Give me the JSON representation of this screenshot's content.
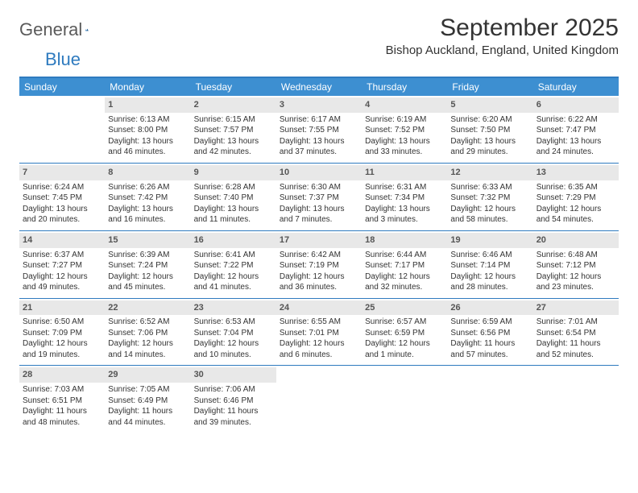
{
  "logo": {
    "word1": "General",
    "word2": "Blue"
  },
  "title": "September 2025",
  "location": "Bishop Auckland, England, United Kingdom",
  "colors": {
    "header_bg": "#3d8fd1",
    "rule": "#2f7bbf",
    "daynum_bg": "#e8e8e8",
    "text": "#333333",
    "logo_gray": "#5a5a5a",
    "logo_blue": "#2f7bbf"
  },
  "day_headers": [
    "Sunday",
    "Monday",
    "Tuesday",
    "Wednesday",
    "Thursday",
    "Friday",
    "Saturday"
  ],
  "weeks": [
    [
      {
        "empty": true
      },
      {
        "n": "1",
        "sunrise": "Sunrise: 6:13 AM",
        "sunset": "Sunset: 8:00 PM",
        "daylight": "Daylight: 13 hours and 46 minutes."
      },
      {
        "n": "2",
        "sunrise": "Sunrise: 6:15 AM",
        "sunset": "Sunset: 7:57 PM",
        "daylight": "Daylight: 13 hours and 42 minutes."
      },
      {
        "n": "3",
        "sunrise": "Sunrise: 6:17 AM",
        "sunset": "Sunset: 7:55 PM",
        "daylight": "Daylight: 13 hours and 37 minutes."
      },
      {
        "n": "4",
        "sunrise": "Sunrise: 6:19 AM",
        "sunset": "Sunset: 7:52 PM",
        "daylight": "Daylight: 13 hours and 33 minutes."
      },
      {
        "n": "5",
        "sunrise": "Sunrise: 6:20 AM",
        "sunset": "Sunset: 7:50 PM",
        "daylight": "Daylight: 13 hours and 29 minutes."
      },
      {
        "n": "6",
        "sunrise": "Sunrise: 6:22 AM",
        "sunset": "Sunset: 7:47 PM",
        "daylight": "Daylight: 13 hours and 24 minutes."
      }
    ],
    [
      {
        "n": "7",
        "sunrise": "Sunrise: 6:24 AM",
        "sunset": "Sunset: 7:45 PM",
        "daylight": "Daylight: 13 hours and 20 minutes."
      },
      {
        "n": "8",
        "sunrise": "Sunrise: 6:26 AM",
        "sunset": "Sunset: 7:42 PM",
        "daylight": "Daylight: 13 hours and 16 minutes."
      },
      {
        "n": "9",
        "sunrise": "Sunrise: 6:28 AM",
        "sunset": "Sunset: 7:40 PM",
        "daylight": "Daylight: 13 hours and 11 minutes."
      },
      {
        "n": "10",
        "sunrise": "Sunrise: 6:30 AM",
        "sunset": "Sunset: 7:37 PM",
        "daylight": "Daylight: 13 hours and 7 minutes."
      },
      {
        "n": "11",
        "sunrise": "Sunrise: 6:31 AM",
        "sunset": "Sunset: 7:34 PM",
        "daylight": "Daylight: 13 hours and 3 minutes."
      },
      {
        "n": "12",
        "sunrise": "Sunrise: 6:33 AM",
        "sunset": "Sunset: 7:32 PM",
        "daylight": "Daylight: 12 hours and 58 minutes."
      },
      {
        "n": "13",
        "sunrise": "Sunrise: 6:35 AM",
        "sunset": "Sunset: 7:29 PM",
        "daylight": "Daylight: 12 hours and 54 minutes."
      }
    ],
    [
      {
        "n": "14",
        "sunrise": "Sunrise: 6:37 AM",
        "sunset": "Sunset: 7:27 PM",
        "daylight": "Daylight: 12 hours and 49 minutes."
      },
      {
        "n": "15",
        "sunrise": "Sunrise: 6:39 AM",
        "sunset": "Sunset: 7:24 PM",
        "daylight": "Daylight: 12 hours and 45 minutes."
      },
      {
        "n": "16",
        "sunrise": "Sunrise: 6:41 AM",
        "sunset": "Sunset: 7:22 PM",
        "daylight": "Daylight: 12 hours and 41 minutes."
      },
      {
        "n": "17",
        "sunrise": "Sunrise: 6:42 AM",
        "sunset": "Sunset: 7:19 PM",
        "daylight": "Daylight: 12 hours and 36 minutes."
      },
      {
        "n": "18",
        "sunrise": "Sunrise: 6:44 AM",
        "sunset": "Sunset: 7:17 PM",
        "daylight": "Daylight: 12 hours and 32 minutes."
      },
      {
        "n": "19",
        "sunrise": "Sunrise: 6:46 AM",
        "sunset": "Sunset: 7:14 PM",
        "daylight": "Daylight: 12 hours and 28 minutes."
      },
      {
        "n": "20",
        "sunrise": "Sunrise: 6:48 AM",
        "sunset": "Sunset: 7:12 PM",
        "daylight": "Daylight: 12 hours and 23 minutes."
      }
    ],
    [
      {
        "n": "21",
        "sunrise": "Sunrise: 6:50 AM",
        "sunset": "Sunset: 7:09 PM",
        "daylight": "Daylight: 12 hours and 19 minutes."
      },
      {
        "n": "22",
        "sunrise": "Sunrise: 6:52 AM",
        "sunset": "Sunset: 7:06 PM",
        "daylight": "Daylight: 12 hours and 14 minutes."
      },
      {
        "n": "23",
        "sunrise": "Sunrise: 6:53 AM",
        "sunset": "Sunset: 7:04 PM",
        "daylight": "Daylight: 12 hours and 10 minutes."
      },
      {
        "n": "24",
        "sunrise": "Sunrise: 6:55 AM",
        "sunset": "Sunset: 7:01 PM",
        "daylight": "Daylight: 12 hours and 6 minutes."
      },
      {
        "n": "25",
        "sunrise": "Sunrise: 6:57 AM",
        "sunset": "Sunset: 6:59 PM",
        "daylight": "Daylight: 12 hours and 1 minute."
      },
      {
        "n": "26",
        "sunrise": "Sunrise: 6:59 AM",
        "sunset": "Sunset: 6:56 PM",
        "daylight": "Daylight: 11 hours and 57 minutes."
      },
      {
        "n": "27",
        "sunrise": "Sunrise: 7:01 AM",
        "sunset": "Sunset: 6:54 PM",
        "daylight": "Daylight: 11 hours and 52 minutes."
      }
    ],
    [
      {
        "n": "28",
        "sunrise": "Sunrise: 7:03 AM",
        "sunset": "Sunset: 6:51 PM",
        "daylight": "Daylight: 11 hours and 48 minutes."
      },
      {
        "n": "29",
        "sunrise": "Sunrise: 7:05 AM",
        "sunset": "Sunset: 6:49 PM",
        "daylight": "Daylight: 11 hours and 44 minutes."
      },
      {
        "n": "30",
        "sunrise": "Sunrise: 7:06 AM",
        "sunset": "Sunset: 6:46 PM",
        "daylight": "Daylight: 11 hours and 39 minutes."
      },
      {
        "empty": true
      },
      {
        "empty": true
      },
      {
        "empty": true
      },
      {
        "empty": true
      }
    ]
  ]
}
